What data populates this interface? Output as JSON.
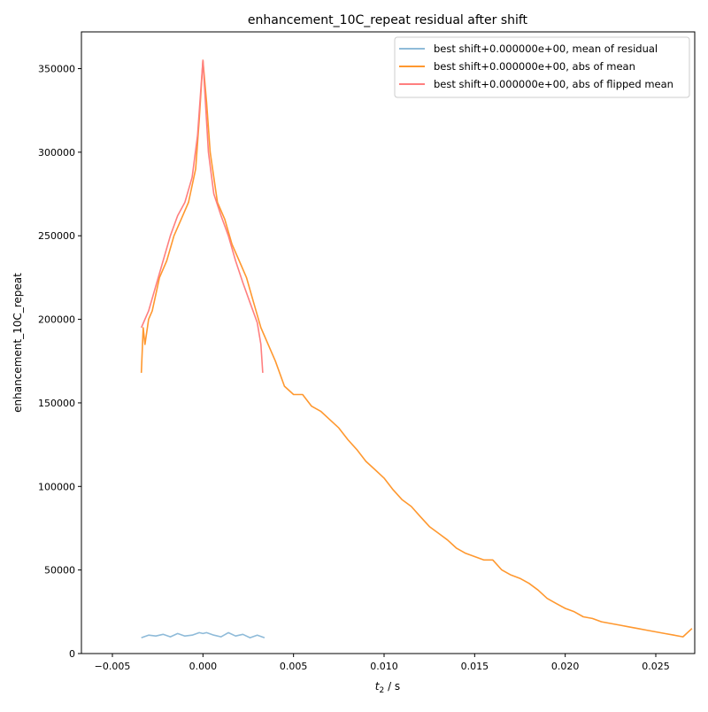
{
  "chart_data": {
    "type": "line",
    "title": "enhancement_10C_repeat residual after shift",
    "xlabel": "t2 / s",
    "xlabel_main": "t",
    "xlabel_sub": "2",
    "xlabel_unit": " / s",
    "ylabel": "enhancement_10C_repeat",
    "xlim": [
      -0.00671,
      0.02715
    ],
    "ylim": [
      0,
      372000
    ],
    "xticks": [
      -0.005,
      0.0,
      0.005,
      0.01,
      0.015,
      0.02,
      0.025
    ],
    "xtick_labels": [
      "−0.005",
      "0.000",
      "0.005",
      "0.010",
      "0.015",
      "0.020",
      "0.025"
    ],
    "yticks": [
      0,
      50000,
      100000,
      150000,
      200000,
      250000,
      300000,
      350000
    ],
    "ytick_labels": [
      "0",
      "50000",
      "100000",
      "150000",
      "200000",
      "250000",
      "300000",
      "350000"
    ],
    "legend_position": "top-right",
    "series": [
      {
        "name": "best shift+0.000000e+00, mean of residual",
        "color": "#8fbbd9",
        "x": [
          -0.0034,
          -0.003,
          -0.0026,
          -0.0022,
          -0.0018,
          -0.0014,
          -0.001,
          -0.0006,
          -0.0002,
          0.0,
          0.0002,
          0.0006,
          0.001,
          0.0014,
          0.0018,
          0.0022,
          0.0026,
          0.003,
          0.0034
        ],
        "y": [
          9500,
          11000,
          10500,
          11500,
          10000,
          12000,
          10500,
          11000,
          12500,
          12000,
          12500,
          11000,
          10000,
          12500,
          10500,
          11500,
          9500,
          11000,
          9500
        ]
      },
      {
        "name": "best shift+0.000000e+00, abs of mean",
        "color": "#ff982f",
        "x": [
          -0.0034,
          -0.0033,
          -0.0032,
          -0.003,
          -0.0028,
          -0.0026,
          -0.0024,
          -0.002,
          -0.0016,
          -0.0012,
          -0.0008,
          -0.0004,
          -0.0002,
          0.0,
          0.0002,
          0.0004,
          0.0008,
          0.0012,
          0.0016,
          0.002,
          0.0024,
          0.0028,
          0.0032,
          0.0036,
          0.004,
          0.0045,
          0.005,
          0.0055,
          0.006,
          0.0065,
          0.007,
          0.0075,
          0.008,
          0.0085,
          0.009,
          0.0095,
          0.01,
          0.0105,
          0.011,
          0.0115,
          0.012,
          0.0125,
          0.013,
          0.0135,
          0.014,
          0.0145,
          0.015,
          0.0155,
          0.016,
          0.0165,
          0.017,
          0.0175,
          0.018,
          0.0185,
          0.019,
          0.0195,
          0.02,
          0.0205,
          0.021,
          0.0215,
          0.022,
          0.0225,
          0.023,
          0.0235,
          0.024,
          0.0245,
          0.025,
          0.0255,
          0.026,
          0.0265,
          0.027
        ],
        "y": [
          168000,
          195000,
          185000,
          200000,
          205000,
          215000,
          225000,
          235000,
          250000,
          260000,
          270000,
          290000,
          320000,
          355000,
          330000,
          300000,
          270000,
          260000,
          245000,
          235000,
          225000,
          210000,
          195000,
          185000,
          175000,
          160000,
          155000,
          155000,
          148000,
          145000,
          140000,
          135000,
          128000,
          122000,
          115000,
          110000,
          105000,
          98000,
          92000,
          88000,
          82000,
          76000,
          72000,
          68000,
          63000,
          60000,
          58000,
          56000,
          56000,
          50000,
          47000,
          45000,
          42000,
          38000,
          33000,
          30000,
          27000,
          25000,
          22000,
          21000,
          19000,
          18000,
          17000,
          16000,
          15000,
          14000,
          13000,
          12000,
          11000,
          10000,
          15000
        ]
      },
      {
        "name": "best shift+0.000000e+00, abs of flipped mean",
        "color": "#ff7f7f",
        "x": [
          -0.0034,
          -0.003,
          -0.0026,
          -0.0022,
          -0.0018,
          -0.0014,
          -0.001,
          -0.0006,
          -0.0003,
          0.0,
          0.0003,
          0.0006,
          0.001,
          0.0014,
          0.0018,
          0.0022,
          0.0026,
          0.003,
          0.0032,
          0.0033
        ],
        "y": [
          195000,
          205000,
          220000,
          235000,
          250000,
          262000,
          270000,
          285000,
          310000,
          355000,
          300000,
          275000,
          262000,
          250000,
          235000,
          222000,
          210000,
          198000,
          185000,
          168000
        ]
      }
    ]
  }
}
